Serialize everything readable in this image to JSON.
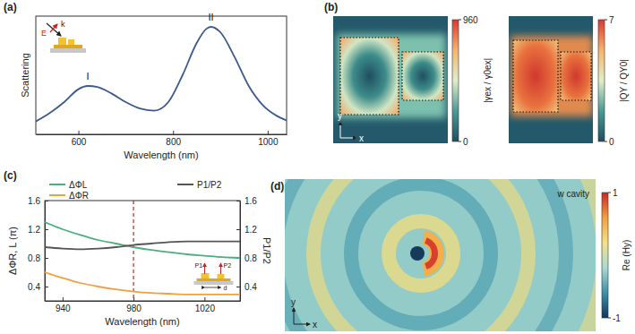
{
  "chart_data": [
    {
      "type": "line",
      "title": "(a)",
      "xlabel": "Wavelength (nm)",
      "ylabel": "Scattering",
      "x": [
        510,
        540,
        570,
        600,
        620,
        640,
        670,
        700,
        730,
        760,
        790,
        820,
        850,
        870,
        880,
        900,
        930,
        960,
        990,
        1020,
        1040
      ],
      "series": [
        {
          "color": "#3b5a8c",
          "values": [
            0.12,
            0.2,
            0.3,
            0.42,
            0.45,
            0.44,
            0.38,
            0.3,
            0.24,
            0.22,
            0.3,
            0.55,
            0.85,
            0.98,
            1.0,
            0.95,
            0.72,
            0.45,
            0.27,
            0.17,
            0.13
          ]
        }
      ],
      "xlim": [
        510,
        1040
      ],
      "xticks": [
        600,
        800,
        1000
      ],
      "ylim": [
        0,
        1.1
      ],
      "tick_labels": "x",
      "annotations": [
        {
          "text": "I",
          "x": 620,
          "y": 0.45
        },
        {
          "text": "II",
          "x": 880,
          "y": 1.0
        }
      ],
      "inset_labels": [
        "E",
        "k"
      ]
    },
    {
      "type": "line",
      "title": "(c)",
      "xlabel": "Wavelength (nm)",
      "ylabel": "ΔΦR, L (π)",
      "y2label": "P1/P2",
      "x": [
        930,
        940,
        950,
        960,
        970,
        980,
        990,
        1000,
        1010,
        1020,
        1030,
        1040
      ],
      "series": [
        {
          "name": "ΔΦL",
          "color": "#4caf7d",
          "values": [
            1.3,
            1.2,
            1.12,
            1.05,
            1.0,
            0.95,
            0.91,
            0.88,
            0.85,
            0.83,
            0.81,
            0.8
          ]
        },
        {
          "name": "ΔΦR",
          "color": "#f0a040",
          "values": [
            0.6,
            0.52,
            0.45,
            0.4,
            0.36,
            0.33,
            0.31,
            0.3,
            0.29,
            0.29,
            0.29,
            0.29
          ]
        },
        {
          "name": "P1/P2",
          "color": "#555555",
          "axis": "y2",
          "values": [
            0.95,
            0.93,
            0.92,
            0.93,
            0.95,
            0.98,
            1.0,
            1.02,
            1.03,
            1.03,
            1.03,
            1.03
          ]
        }
      ],
      "xlim": [
        930,
        1040
      ],
      "xticks": [
        940,
        980,
        1020
      ],
      "ylim": [
        0.2,
        1.6
      ],
      "yticks": [
        0.4,
        0.8,
        1.2,
        1.6
      ],
      "y2lim": [
        0.2,
        1.6
      ],
      "y2ticks": [
        0.4,
        0.8,
        1.2,
        1.6
      ],
      "reference_line": {
        "x": 980,
        "color": "#b03020",
        "line_style": "dashed"
      },
      "legend": "top",
      "inset_labels": [
        "P1",
        "P2",
        "d"
      ]
    },
    {
      "type": "heatmap",
      "title": "(b)",
      "colorbar_label": "|γex / γ0ex|",
      "colorbar_lim": [
        0,
        960
      ],
      "colorbar_ticks": [
        0,
        960
      ],
      "axis_labels": [
        "x",
        "y"
      ]
    },
    {
      "type": "heatmap",
      "colorbar_label": "|QY / QY0|",
      "colorbar_lim": [
        0,
        7
      ],
      "colorbar_ticks": [
        0,
        7
      ]
    },
    {
      "type": "heatmap",
      "title": "(d)",
      "annotation": "w cavity",
      "colorbar_label": "Re (Hy)",
      "colorbar_lim": [
        -1,
        1
      ],
      "colorbar_ticks": [
        -1,
        1
      ],
      "axis_labels": [
        "x",
        "y"
      ]
    }
  ]
}
